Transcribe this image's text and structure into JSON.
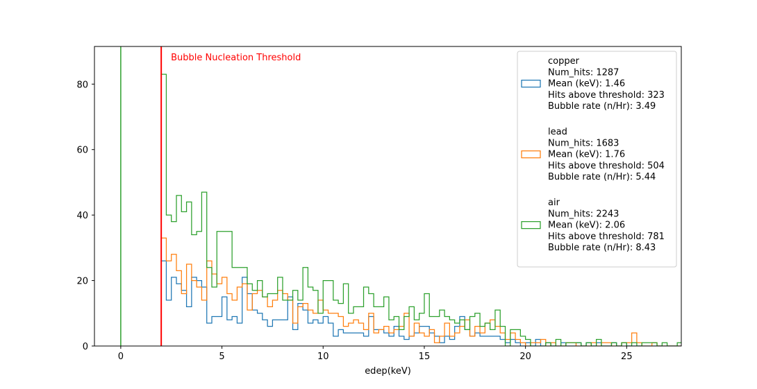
{
  "chart_data": {
    "type": "histogram",
    "xlabel": "edep(keV)",
    "ylabel": "",
    "xlim": [
      -1.3,
      27.7
    ],
    "ylim": [
      0,
      91.5
    ],
    "xticks": [
      0,
      5,
      10,
      15,
      20,
      25
    ],
    "yticks": [
      0,
      20,
      40,
      60,
      80
    ],
    "bin_width": 0.25,
    "bin_start": 2.0,
    "threshold": {
      "x": 2.0,
      "label": "Bubble Nucleation Threshold",
      "color": "#ff0000"
    },
    "zero_line": {
      "x": 0,
      "color": "#2ca02c"
    },
    "legend_position": "upper right",
    "series": [
      {
        "name": "copper",
        "color": "#1f77b4",
        "legend_lines": [
          "copper",
          "Num_hits: 1287",
          "Mean (keV): 1.46",
          "Hits above threshold: 323",
          "Bubble rate (n/Hr): 3.49"
        ],
        "values": [
          26,
          14,
          21,
          19,
          17,
          12,
          21,
          20,
          18,
          7,
          9,
          9,
          15,
          8,
          9,
          7,
          21,
          16,
          11,
          10,
          8,
          6,
          8,
          8,
          8,
          15,
          5,
          13,
          11,
          7,
          8,
          7,
          9,
          7,
          3,
          5,
          4,
          4,
          4,
          4,
          3,
          9,
          5,
          5,
          4,
          3,
          6,
          3,
          2,
          3,
          4,
          6,
          6,
          4,
          3,
          1,
          3,
          2,
          6,
          9,
          5,
          3,
          4,
          3,
          3,
          3,
          3,
          2,
          1,
          2,
          1,
          0,
          1,
          0,
          2,
          0,
          1,
          0,
          0,
          1,
          0,
          0,
          1,
          0,
          1,
          0,
          1,
          0,
          0,
          1,
          0,
          1,
          0,
          0,
          0,
          0,
          0,
          0,
          0,
          0,
          0,
          0,
          0,
          0,
          0,
          0
        ]
      },
      {
        "name": "lead",
        "color": "#ff7f0e",
        "legend_lines": [
          "lead",
          "Num_hits: 1683",
          "Mean (keV): 1.76",
          "Hits above threshold: 504",
          "Bubble rate (n/Hr): 5.44"
        ],
        "values": [
          33,
          26,
          28,
          23,
          16,
          25,
          20,
          18,
          14,
          26,
          22,
          19,
          21,
          16,
          14,
          18,
          19,
          11,
          16,
          17,
          15,
          12,
          14,
          17,
          16,
          14,
          7,
          12,
          13,
          11,
          10,
          14,
          11,
          10,
          10,
          9,
          6,
          7,
          8,
          7,
          5,
          10,
          4,
          5,
          6,
          4,
          5,
          6,
          10,
          3,
          7,
          4,
          3,
          5,
          1,
          3,
          7,
          3,
          4,
          6,
          8,
          3,
          6,
          4,
          7,
          8,
          6,
          4,
          2,
          4,
          2,
          1,
          0,
          1,
          1,
          2,
          0,
          1,
          0,
          0,
          1,
          1,
          0,
          0,
          0,
          1,
          0,
          1,
          1,
          0,
          0,
          1,
          1,
          4,
          1,
          0,
          0,
          1,
          0,
          0,
          0,
          0,
          0,
          0,
          1,
          1,
          1,
          0,
          0,
          0
        ]
      },
      {
        "name": "air",
        "color": "#2ca02c",
        "legend_lines": [
          "air",
          "Num_hits: 2243",
          "Mean (keV): 2.06",
          "Hits above threshold: 781",
          "Bubble rate (n/Hr): 8.43"
        ],
        "values": [
          83,
          40,
          38,
          46,
          41,
          44,
          34,
          35,
          47,
          24,
          18,
          35,
          35,
          35,
          24,
          24,
          24,
          19,
          17,
          20,
          15,
          16,
          16,
          21,
          14,
          14,
          17,
          14,
          24,
          18,
          17,
          10,
          20,
          20,
          14,
          13,
          19,
          10,
          12,
          12,
          18,
          16,
          12,
          12,
          15,
          8,
          9,
          5,
          9,
          12,
          8,
          10,
          16,
          9,
          9,
          11,
          9,
          8,
          7,
          8,
          5,
          9,
          10,
          6,
          7,
          5,
          11,
          6,
          0,
          5,
          5,
          3,
          2,
          0,
          0,
          0,
          1,
          0,
          2,
          0,
          1,
          1,
          1,
          0,
          1,
          0,
          2,
          0,
          0,
          1,
          0,
          1,
          0,
          1,
          0,
          1,
          1,
          1,
          0,
          1,
          0,
          0,
          1,
          0,
          0,
          0,
          0,
          0,
          0,
          0,
          0,
          1
        ]
      }
    ]
  }
}
